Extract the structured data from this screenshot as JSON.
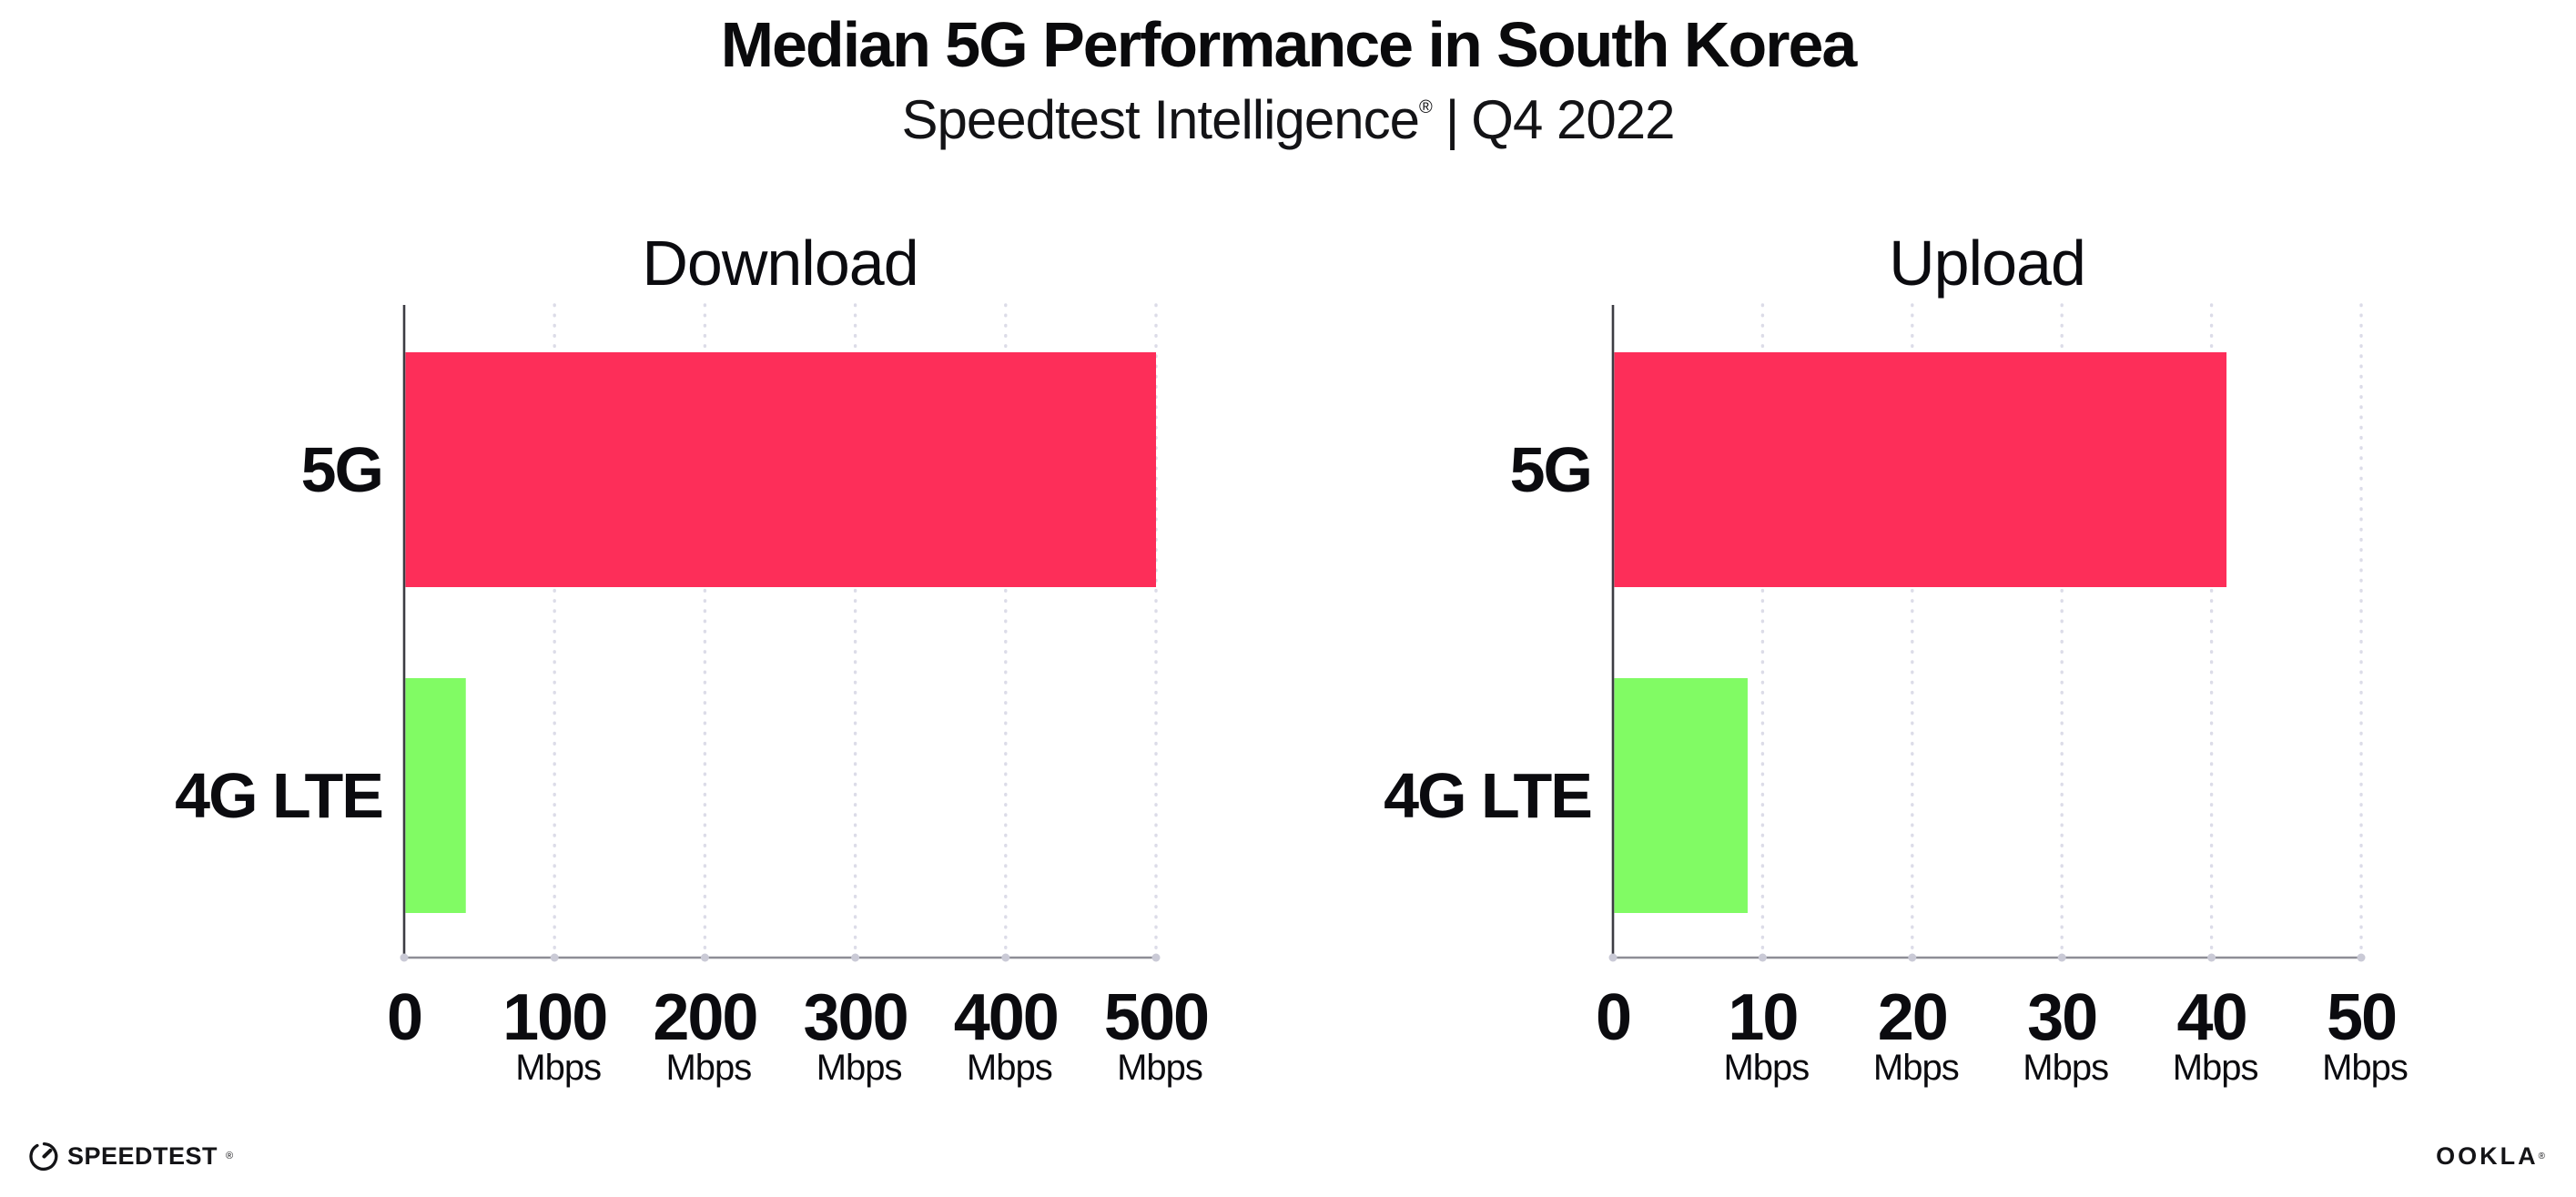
{
  "header": {
    "title": "Median 5G Performance in South Korea",
    "product": "Speedtest Intelligence",
    "registered": "®",
    "separator": "|",
    "period": "Q4 2022"
  },
  "footer": {
    "speedtest_logo_text": "SPEEDTEST",
    "speedtest_registered": "®",
    "speedtest_icon": "gauge-icon",
    "ookla_logo_text": "OOKLA",
    "ookla_registered": "®"
  },
  "colors": {
    "bar_5g": "#FD2E59",
    "bar_4g_lte": "#81FB64",
    "gridline": "#DCDCE8",
    "tick_dot": "#CACAD6",
    "y_axis": "#3C3C43",
    "x_axis": "#8E8E96",
    "text": "#0B0B0F"
  },
  "chart_data": [
    {
      "type": "bar",
      "orientation": "horizontal",
      "title": "Download",
      "categories": [
        "5G",
        "4G LTE"
      ],
      "values": [
        500,
        41
      ],
      "unit": "Mbps",
      "xlim": [
        0,
        500
      ],
      "xticks": [
        0,
        100,
        200,
        300,
        400,
        500
      ],
      "tick_unit_label": "Mbps",
      "tick_unit_on_zero": false,
      "bar_colors": [
        "#FD2E59",
        "#81FB64"
      ],
      "grid": "vertical-dotted",
      "legend": "none"
    },
    {
      "type": "bar",
      "orientation": "horizontal",
      "title": "Upload",
      "categories": [
        "5G",
        "4G LTE"
      ],
      "values": [
        41,
        9
      ],
      "unit": "Mbps",
      "xlim": [
        0,
        50
      ],
      "xticks": [
        0,
        10,
        20,
        30,
        40,
        50
      ],
      "tick_unit_label": "Mbps",
      "tick_unit_on_zero": false,
      "bar_colors": [
        "#FD2E59",
        "#81FB64"
      ],
      "grid": "vertical-dotted",
      "legend": "none"
    }
  ]
}
